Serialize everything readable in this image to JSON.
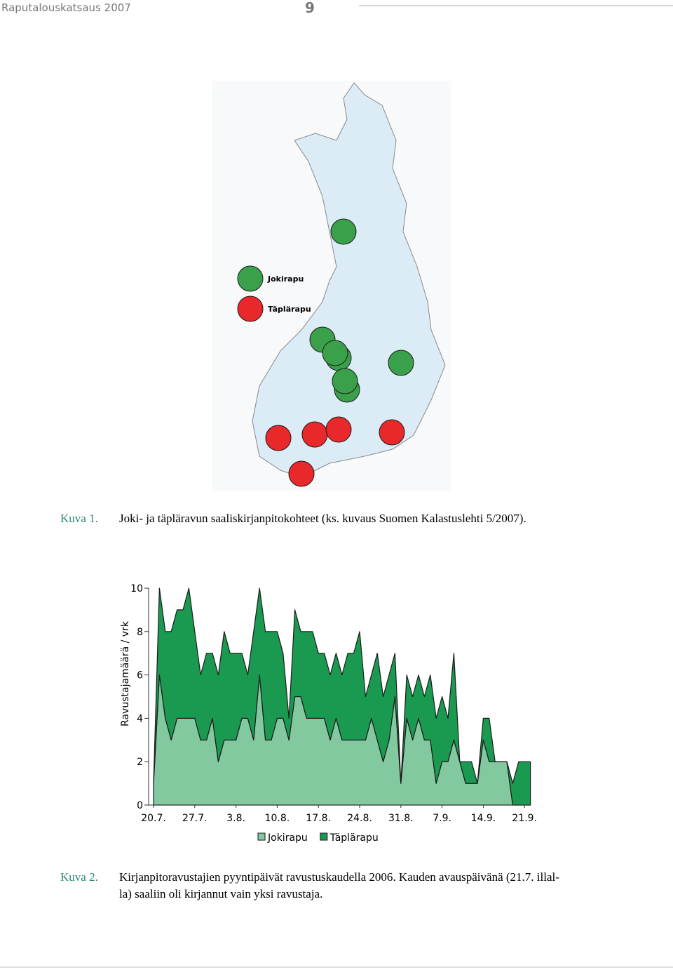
{
  "header": {
    "title": "Raputalouskatsaus 2007",
    "page": "9"
  },
  "figure1": {
    "legend": [
      "Jokirapu",
      "Täplärapu"
    ],
    "caption_label": "Kuva 1.",
    "caption": "Joki- ja täpläravun saaliskirjanpitokohteet (ks. kuvaus Suomen Kalastuslehti 5/2007)."
  },
  "chart_data": {
    "type": "stacked_area",
    "y_label": "Ravustajamäärä / vrk",
    "categories": [
      "20.7.",
      null,
      null,
      null,
      null,
      null,
      null,
      "27.7.",
      null,
      null,
      null,
      null,
      null,
      null,
      "3.8.",
      null,
      null,
      null,
      null,
      null,
      null,
      "10.8.",
      null,
      null,
      null,
      null,
      null,
      null,
      "17.8.",
      null,
      null,
      null,
      null,
      null,
      null,
      "24.8.",
      null,
      null,
      null,
      null,
      null,
      null,
      "31.8.",
      null,
      null,
      null,
      null,
      null,
      null,
      "7.9.",
      null,
      null,
      null,
      null,
      null,
      null,
      "14.9.",
      null,
      null,
      null,
      null,
      null,
      null,
      "21.9.",
      null
    ],
    "series": [
      {
        "name": "Jokirapu",
        "color": "#82c9a0",
        "values": [
          1,
          6,
          4,
          3,
          4,
          4,
          4,
          4,
          3,
          3,
          4,
          2,
          3,
          3,
          3,
          4,
          4,
          3,
          6,
          3,
          3,
          4,
          4,
          3,
          5,
          5,
          4,
          4,
          4,
          4,
          3,
          4,
          3,
          3,
          3,
          3,
          3,
          4,
          3,
          2,
          3,
          5,
          1,
          4,
          3,
          4,
          3,
          3,
          1,
          2,
          2,
          3,
          2,
          1,
          1,
          1,
          3,
          2,
          2,
          2,
          2,
          0,
          0,
          0,
          0
        ]
      },
      {
        "name": "Täplärapu",
        "color": "#1a9a50",
        "values": [
          0,
          4,
          4,
          5,
          5,
          5,
          6,
          4,
          3,
          4,
          3,
          4,
          5,
          4,
          4,
          3,
          2,
          5,
          4,
          5,
          5,
          4,
          3,
          1,
          4,
          3,
          4,
          4,
          3,
          3,
          3,
          3,
          3,
          4,
          4,
          5,
          2,
          2,
          4,
          3,
          3,
          2,
          0,
          2,
          2,
          2,
          2,
          3,
          3,
          3,
          2,
          4,
          0,
          1,
          1,
          0,
          1,
          2,
          0,
          0,
          0,
          1,
          2,
          2,
          2
        ]
      }
    ],
    "ylim": [
      0,
      10
    ],
    "yticks": [
      0,
      2,
      4,
      6,
      8,
      10
    ]
  },
  "figure2": {
    "caption_label": "Kuva 2.",
    "caption_lines": [
      "Kirjanpitoravustajien pyyntipäivät ravustuskaudella 2006. Kauden avauspäivänä (21.7. illal-",
      "la) saaliin oli kirjannut vain yksi ravustaja."
    ]
  }
}
